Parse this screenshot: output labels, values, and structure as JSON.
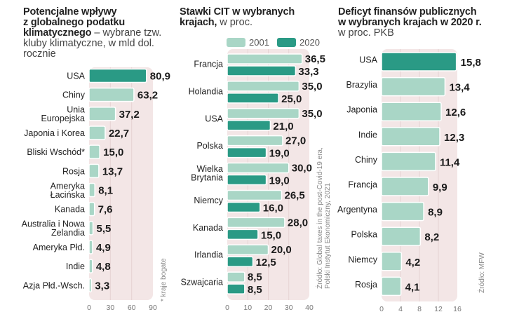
{
  "colors": {
    "primary": "#2a9a85",
    "secondary": "#a9d6c6",
    "plot_bg": "#f3e6e6",
    "grid": "#e6d3d3"
  },
  "chart_data": [
    {
      "type": "bar",
      "orientation": "horizontal",
      "title_bold": "Potencjalne wpływy z globalnego podatku klimatycznego",
      "title_light": " – wybrane tzw. kluby klimatyczne, w mld dol. rocznie",
      "title_lines": [
        {
          "bold": "Potencjalne wpływy",
          "light": ""
        },
        {
          "bold": "z globalnego podatku",
          "light": ""
        },
        {
          "bold": "klimatycznego",
          "light": " – wybrane tzw."
        },
        {
          "bold": "",
          "light": "kluby klimatyczne, w mld dol."
        },
        {
          "bold": "",
          "light": "rocznie"
        }
      ],
      "categories": [
        [
          "USA"
        ],
        [
          "Chiny"
        ],
        [
          "Unia",
          "Europejska"
        ],
        [
          "Japonia i Korea"
        ],
        [
          "Bliski Wschód*"
        ],
        [
          "Rosja"
        ],
        [
          "Ameryka",
          "Łacińska"
        ],
        [
          "Kanada"
        ],
        [
          "Australia i Nowa",
          "Zelandia"
        ],
        [
          "Ameryka Płd."
        ],
        [
          "Indie"
        ],
        [
          "Azja Płd.-Wsch."
        ]
      ],
      "values": [
        80.9,
        63.2,
        37.2,
        22.7,
        15.0,
        13.7,
        8.1,
        7.6,
        5.5,
        4.9,
        4.8,
        3.3
      ],
      "value_labels": [
        "80,9",
        "63,2",
        "37,2",
        "22,7",
        "15,0",
        "13,7",
        "8,1",
        "7,6",
        "5,5",
        "4,9",
        "4,8",
        "3,3"
      ],
      "highlight_index": 0,
      "xlim": [
        0,
        90
      ],
      "xticks": [
        0,
        30,
        60,
        90
      ],
      "xtick_labels": [
        "0",
        "30",
        "60",
        "90"
      ],
      "grid": true,
      "footnote": "* kraje bogate"
    },
    {
      "type": "bar",
      "orientation": "horizontal-grouped",
      "title_lines": [
        {
          "bold": "Stawki CIT w wybranych",
          "light": ""
        },
        {
          "bold": "krajach,",
          "light": " w proc."
        }
      ],
      "legend": [
        "2001",
        "2020"
      ],
      "legend_position": "top",
      "categories": [
        [
          "Francja"
        ],
        [
          "Holandia"
        ],
        [
          "USA"
        ],
        [
          "Polska"
        ],
        [
          "Wielka",
          "Brytania"
        ],
        [
          "Niemcy"
        ],
        [
          "Kanada"
        ],
        [
          "Irlandia"
        ],
        [
          "Szwajcaria"
        ]
      ],
      "series": [
        {
          "name": "2001",
          "values": [
            36.5,
            35.0,
            35.0,
            27.0,
            30.0,
            26.5,
            28.0,
            20.0,
            8.5
          ],
          "labels": [
            "36,5",
            "35,0",
            "35,0",
            "27,0",
            "30,0",
            "26,5",
            "28,0",
            "20,0",
            "8,5"
          ]
        },
        {
          "name": "2020",
          "values": [
            33.3,
            25.0,
            21.0,
            19.0,
            19.0,
            16.0,
            15.0,
            12.5,
            8.5
          ],
          "labels": [
            "33,3",
            "25,0",
            "21,0",
            "19,0",
            "19,0",
            "16,0",
            "15,0",
            "12,5",
            "8,5"
          ]
        }
      ],
      "xlim": [
        0,
        40
      ],
      "xticks": [
        0,
        10,
        20,
        30,
        40
      ],
      "xtick_labels": [
        "0",
        "10",
        "20",
        "30",
        "40"
      ],
      "grid": true,
      "source_lines": [
        "Źródło: Global taxes in the post-Covid-19 era,",
        "Polski Instytut Ekonomiczny, 2021"
      ]
    },
    {
      "type": "bar",
      "orientation": "horizontal",
      "title_lines": [
        {
          "bold": "Deficyt finansów publicznych",
          "light": ""
        },
        {
          "bold": "w wybranych krajach w 2020 r.",
          "light": ""
        },
        {
          "bold": "",
          "light": "w proc. PKB"
        }
      ],
      "categories": [
        [
          "USA"
        ],
        [
          "Brazylia"
        ],
        [
          "Japonia"
        ],
        [
          "Indie"
        ],
        [
          "Chiny"
        ],
        [
          "Francja"
        ],
        [
          "Argentyna"
        ],
        [
          "Polska"
        ],
        [
          "Niemcy"
        ],
        [
          "Rosja"
        ]
      ],
      "values": [
        15.8,
        13.4,
        12.6,
        12.3,
        11.4,
        9.9,
        8.9,
        8.2,
        4.2,
        4.1
      ],
      "value_labels": [
        "15,8",
        "13,4",
        "12,6",
        "12,3",
        "11,4",
        "9,9",
        "8,9",
        "8,2",
        "4,2",
        "4,1"
      ],
      "highlight_index": 0,
      "xlim": [
        0,
        16
      ],
      "xticks": [
        0,
        4,
        8,
        12,
        16
      ],
      "xtick_labels": [
        "0",
        "4",
        "8",
        "12",
        "16"
      ],
      "grid": true,
      "source_lines": [
        "Źródło: MFW"
      ]
    }
  ]
}
